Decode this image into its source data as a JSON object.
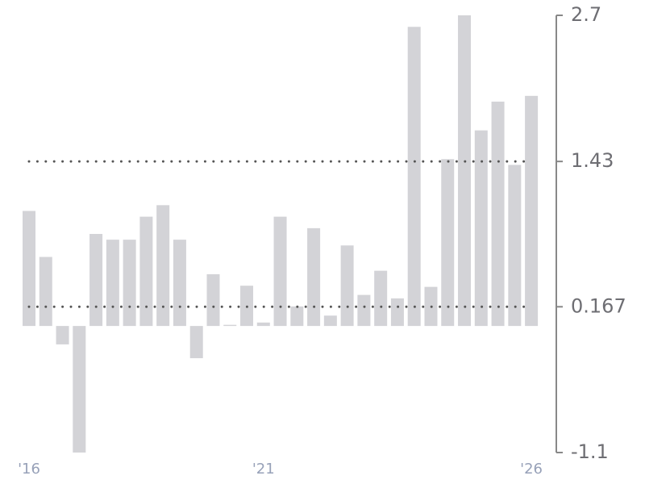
{
  "chart_data": {
    "type": "bar",
    "categories": [
      "'16",
      null,
      null,
      null,
      null,
      null,
      null,
      null,
      null,
      null,
      null,
      null,
      null,
      null,
      "'21",
      null,
      null,
      null,
      null,
      null,
      null,
      null,
      null,
      null,
      null,
      null,
      null,
      null,
      null,
      null,
      "'26"
    ],
    "values": [
      1.0,
      0.6,
      -0.16,
      -1.1,
      0.8,
      0.75,
      0.75,
      0.95,
      1.05,
      0.75,
      -0.28,
      0.45,
      0.01,
      0.35,
      0.03,
      0.95,
      0.17,
      0.85,
      0.09,
      0.7,
      0.27,
      0.48,
      0.24,
      2.6,
      0.34,
      1.45,
      2.7,
      1.7,
      1.95,
      1.4,
      2.0
    ],
    "color": "#d3d3d7",
    "ylim": [
      -1.1,
      2.7
    ],
    "yticks": [
      -1.1,
      0.167,
      1.43,
      2.7
    ],
    "reference_lines": [
      0.167,
      1.43
    ],
    "axis_side": "right"
  }
}
